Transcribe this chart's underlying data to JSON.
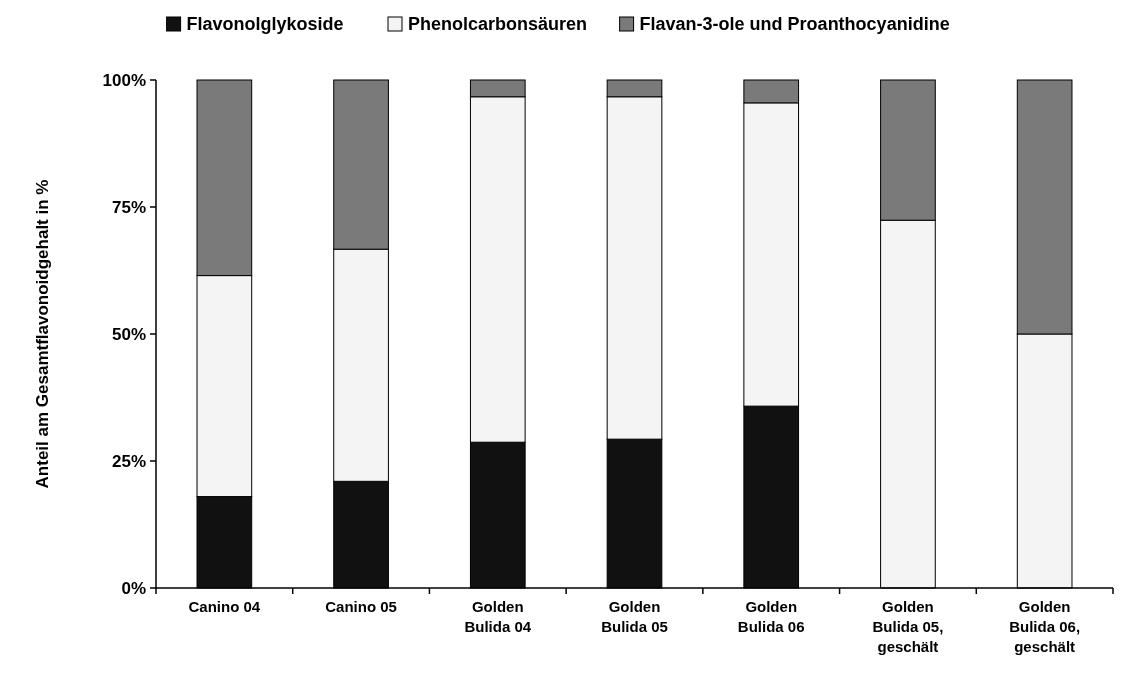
{
  "chart_data": {
    "type": "bar",
    "stacked": true,
    "ylabel": "Anteil am Gesamtflavonoidgehalt in %",
    "categories": [
      "Canino 04",
      "Canino 05",
      "Golden Bulida 04",
      "Golden Bulida 05",
      "Golden Bulida 06",
      "Golden Bulida 05, geschält",
      "Golden Bulida 06, geschält"
    ],
    "series": [
      {
        "name": "Flavonolglykoside",
        "color": "#111111",
        "values": [
          18,
          21,
          28.7,
          29.3,
          35.8,
          0,
          0
        ]
      },
      {
        "name": "Phenolcarbonsäuren",
        "color": "#f4f4f4",
        "values": [
          43.5,
          45.7,
          68,
          67.4,
          59.7,
          72.4,
          50
        ]
      },
      {
        "name": "Flavan-3-ole und Proanthocyanidine",
        "color": "#7a7a7a",
        "values": [
          38.5,
          33.3,
          3.3,
          3.3,
          4.5,
          27.6,
          50
        ]
      }
    ],
    "ylim": [
      0,
      100
    ],
    "yticks": [
      {
        "value": 0,
        "label": "0%"
      },
      {
        "value": 25,
        "label": "25%"
      },
      {
        "value": 50,
        "label": "50%"
      },
      {
        "value": 75,
        "label": "75%"
      },
      {
        "value": 100,
        "label": "100%"
      }
    ],
    "grid": false,
    "legend": "top"
  }
}
